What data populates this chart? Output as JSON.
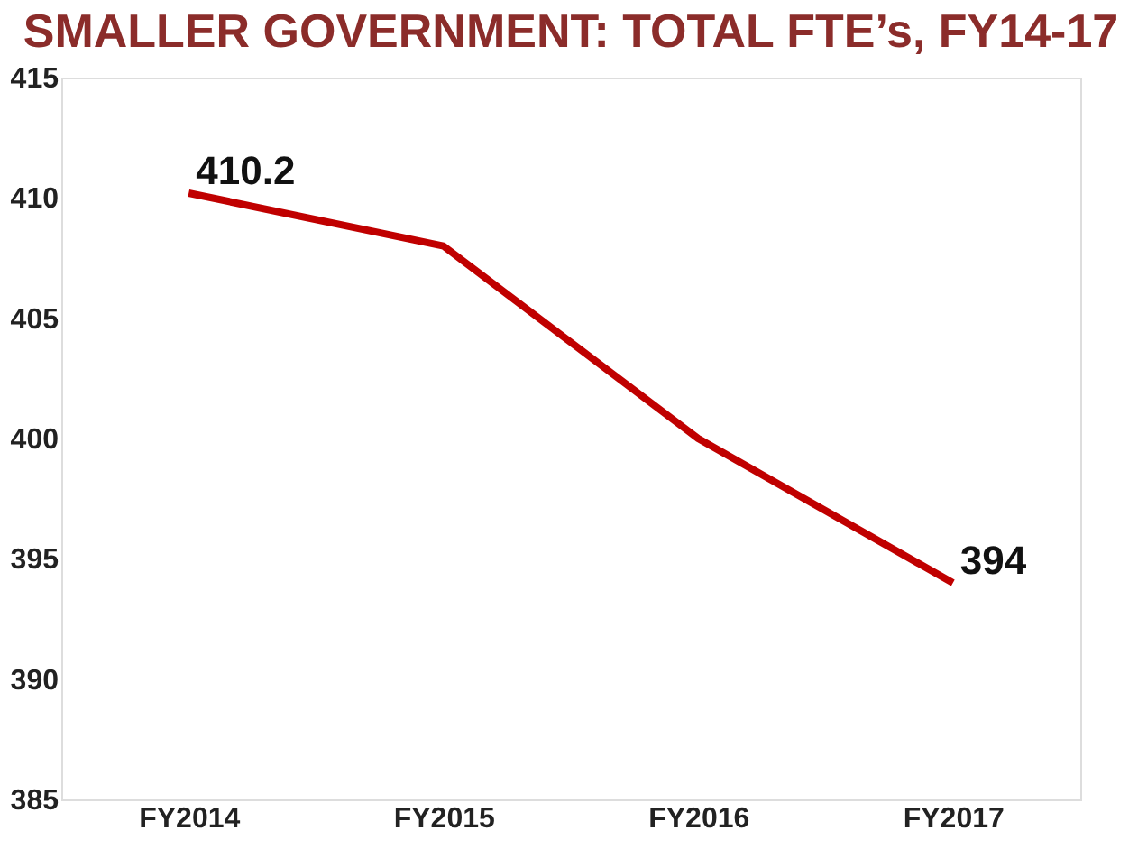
{
  "chart_data": {
    "type": "line",
    "title": "SMALLER GOVERNMENT: TOTAL FTE’s, FY14-17",
    "categories": [
      "FY2014",
      "FY2015",
      "FY2016",
      "FY2017"
    ],
    "series": [
      {
        "color": "#c00000",
        "values": [
          410.2,
          408,
          400,
          394
        ]
      }
    ],
    "value_labels": [
      "410.2",
      null,
      null,
      "394"
    ],
    "ylim": [
      385,
      415
    ],
    "yticks": [
      385,
      390,
      395,
      400,
      405,
      410,
      415
    ],
    "grid": false,
    "marker": "none",
    "line_style": "solid"
  }
}
